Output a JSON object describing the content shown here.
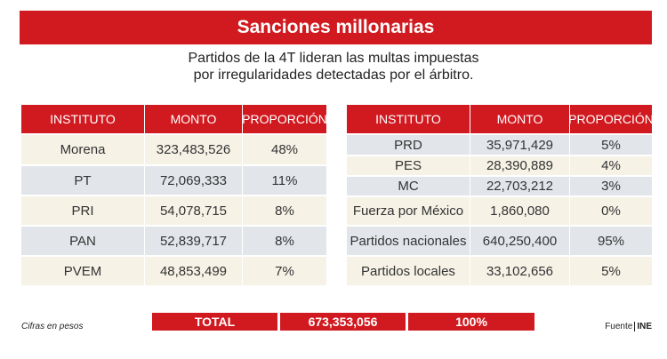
{
  "header": {
    "title": "Sanciones millonarias",
    "subtitle": [
      "Partidos de la 4T lideran las multas impuestas",
      "por irregularidades detectadas por el árbitro."
    ]
  },
  "tables": [
    {
      "columns": [
        "INSTITUTO",
        "MONTO",
        "PROPORCIÓN"
      ],
      "rows": [
        [
          "Morena",
          "323,483,526",
          "48%"
        ],
        [
          "PT",
          "72,069,333",
          "11%"
        ],
        [
          "PRI",
          "54,078,715",
          "8%"
        ],
        [
          "PAN",
          "52,839,717",
          "8%"
        ],
        [
          "PVEM",
          "48,853,499",
          "7%"
        ]
      ]
    },
    {
      "columns": [
        "INSTITUTO",
        "MONTO",
        "PROPORCIÓN"
      ],
      "rows": [
        [
          "PRD",
          "35,971,429",
          "5%"
        ],
        [
          "PES",
          "28,390,889",
          "4%"
        ],
        [
          "MC",
          "22,703,212",
          "3%"
        ],
        [
          "Fuerza por México",
          "1,860,080",
          "0%"
        ],
        [
          "Partidos nacionales",
          "640,250,400",
          "95%"
        ],
        [
          "Partidos locales",
          "33,102,656",
          "5%"
        ]
      ]
    }
  ],
  "total": [
    "TOTAL",
    "673,353,056",
    "100%"
  ],
  "footer": {
    "note": "Cifras en pesos",
    "source_label": "Fuente",
    "source": "INE"
  }
}
